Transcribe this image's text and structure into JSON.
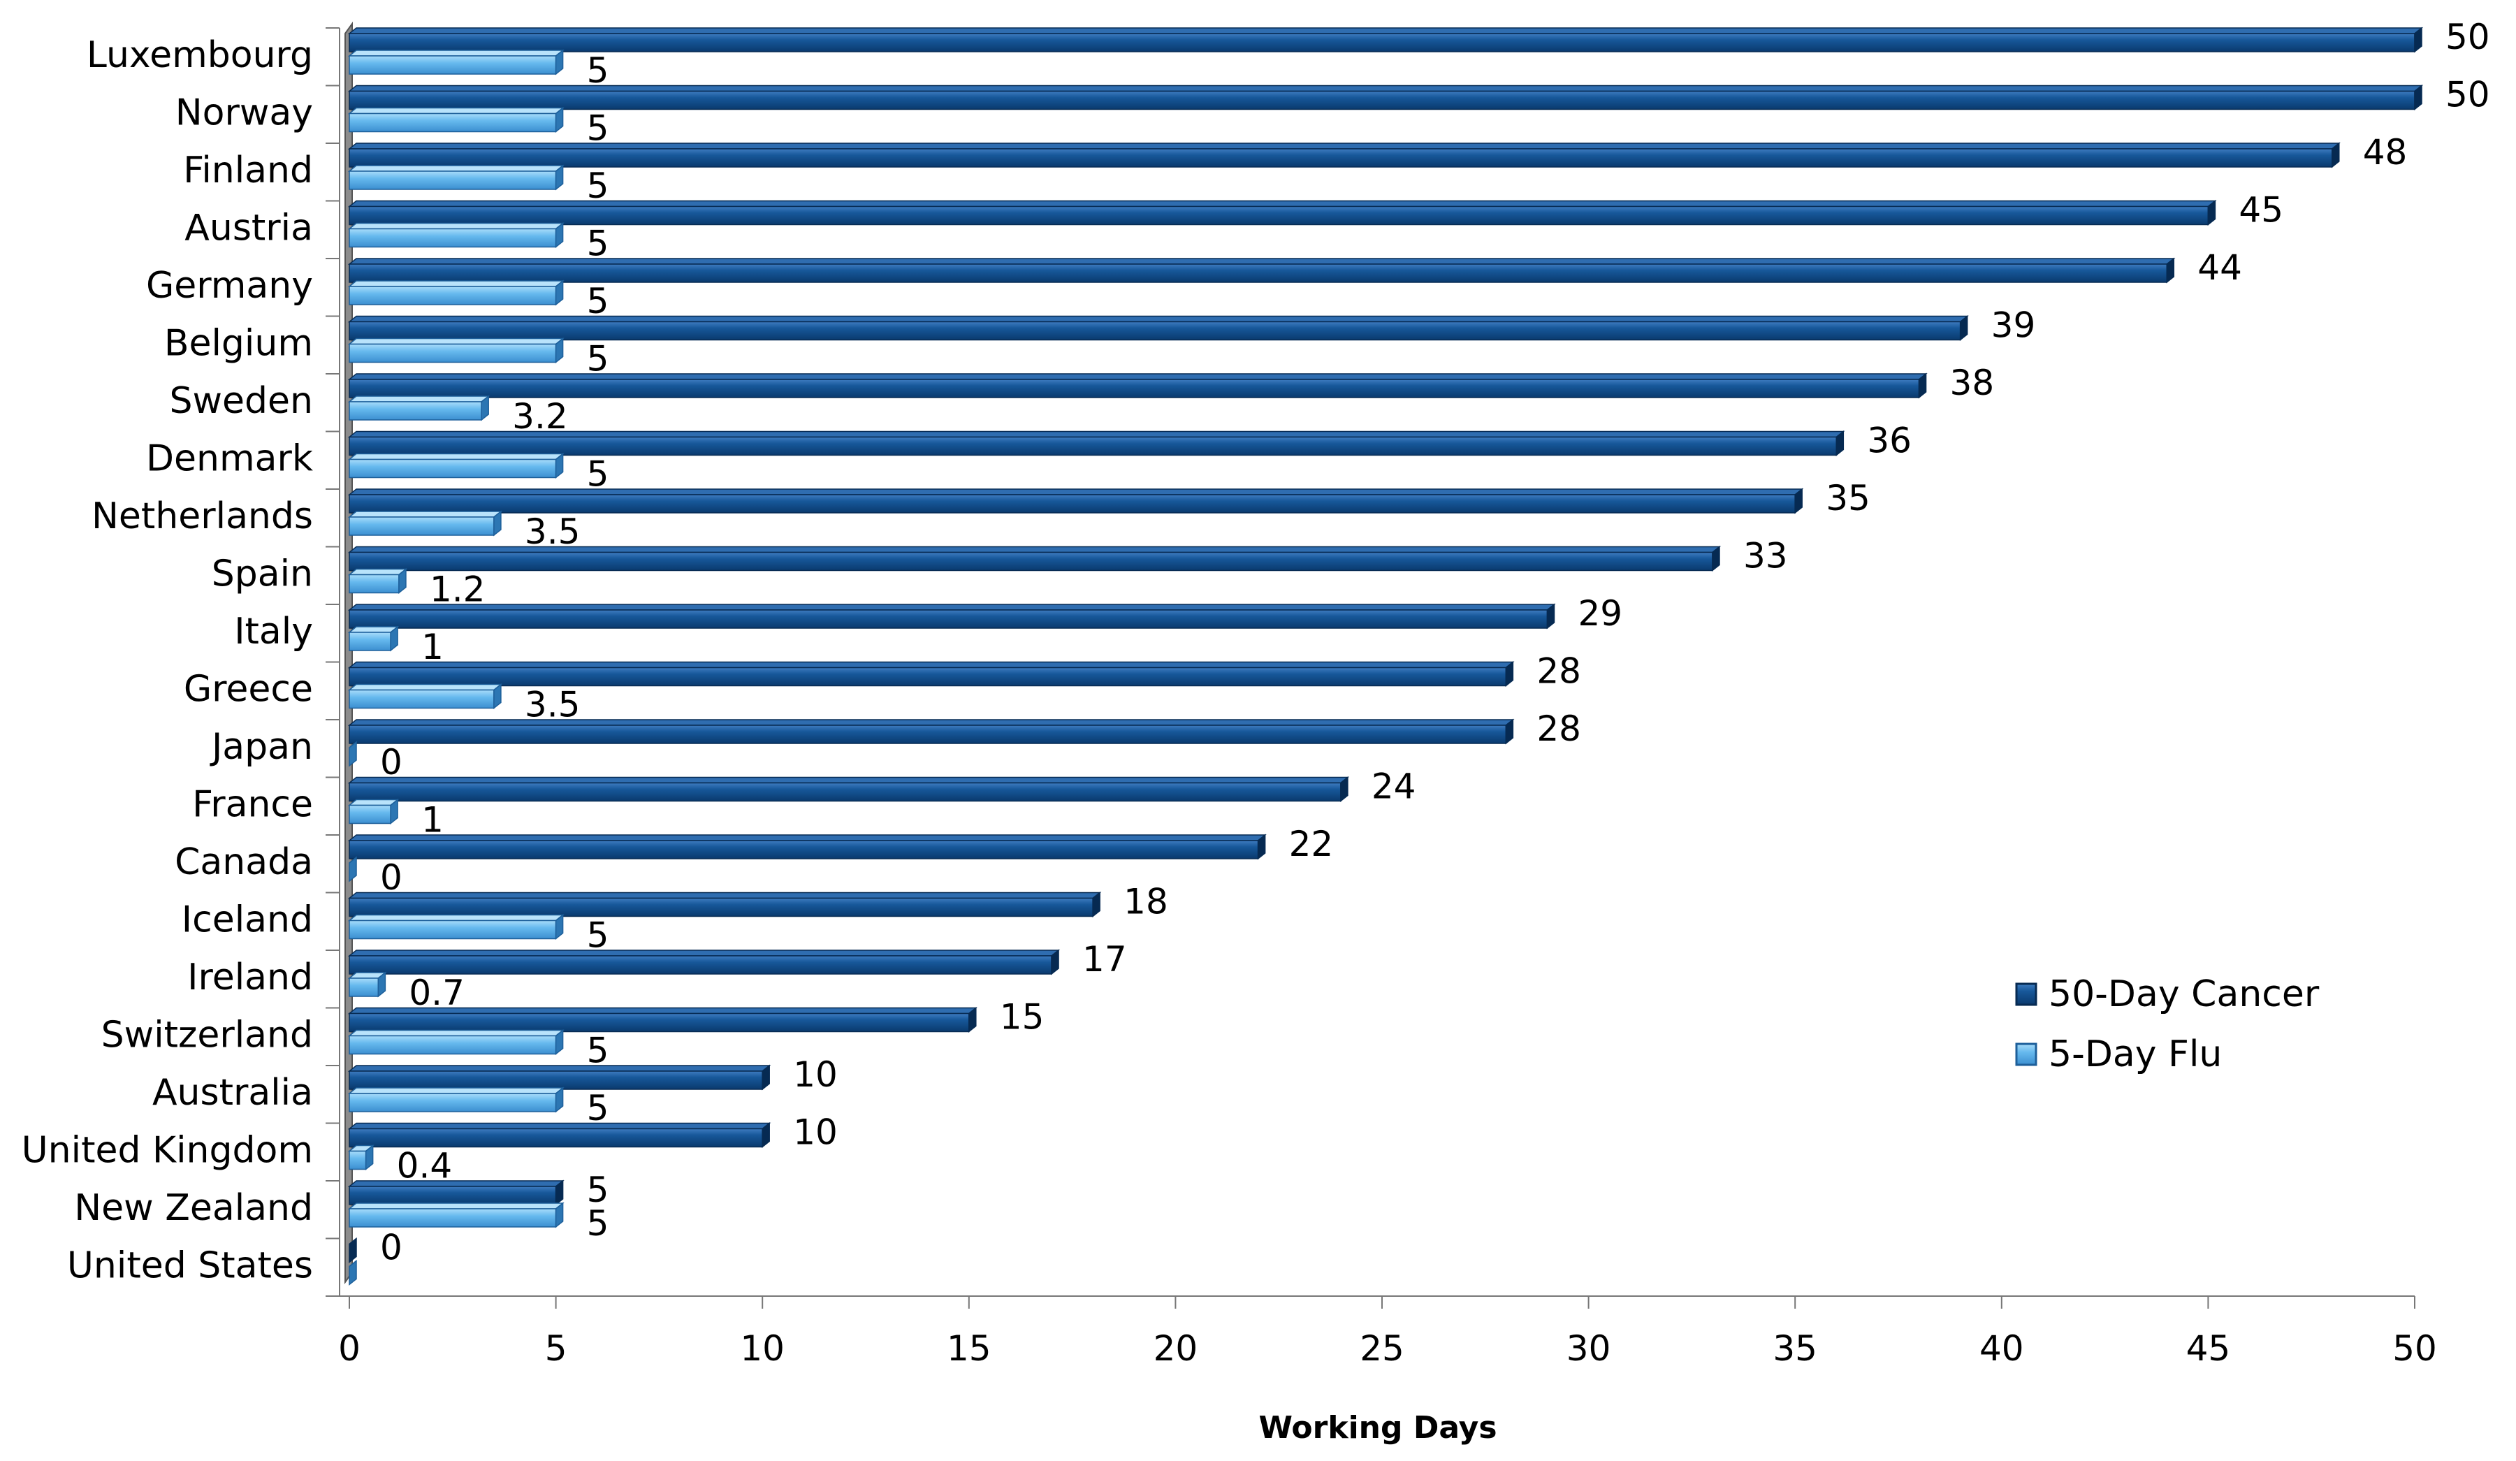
{
  "chart_data": {
    "type": "bar",
    "orientation": "horizontal",
    "categories": [
      "Luxembourg",
      "Norway",
      "Finland",
      "Austria",
      "Germany",
      "Belgium",
      "Sweden",
      "Denmark",
      "Netherlands",
      "Spain",
      "Italy",
      "Greece",
      "Japan",
      "France",
      "Canada",
      "Iceland",
      "Ireland",
      "Switzerland",
      "Australia",
      "United Kingdom",
      "New Zealand",
      "United States"
    ],
    "series": [
      {
        "name": "50-Day Cancer",
        "color": "#0f4c8a",
        "values": [
          50,
          50,
          48,
          45,
          44,
          39,
          38,
          36,
          35,
          33,
          29,
          28,
          28,
          24,
          22,
          18,
          17,
          15,
          10,
          10,
          5,
          0
        ],
        "labels": [
          "50",
          "50",
          "48",
          "45",
          "44",
          "39",
          "38",
          "36",
          "35",
          "33",
          "29",
          "28",
          "28",
          "24",
          "22",
          "18",
          "17",
          "15",
          "10",
          "10",
          "5",
          "0"
        ]
      },
      {
        "name": "5-Day Flu",
        "color": "#5bb0ea",
        "values": [
          5,
          5,
          5,
          5,
          5,
          5,
          3.2,
          5,
          3.5,
          1.2,
          1,
          3.5,
          0,
          1,
          0,
          5,
          0.7,
          5,
          5,
          0.4,
          5,
          0
        ],
        "labels": [
          "5",
          "5",
          "5",
          "5",
          "5",
          "5",
          "3.2",
          "5",
          "3.5",
          "1.2",
          "1",
          "3.5",
          "0",
          "1",
          "0",
          "5",
          "0.7",
          "5",
          "5",
          "0.4",
          "5",
          ""
        ]
      }
    ],
    "xlabel": "Working Days",
    "ylabel": "",
    "title": "",
    "xlim": [
      0,
      50
    ],
    "xticks": [
      0,
      5,
      10,
      15,
      20,
      25,
      30,
      35,
      40,
      45,
      50
    ],
    "grid": false,
    "legend": "right"
  }
}
